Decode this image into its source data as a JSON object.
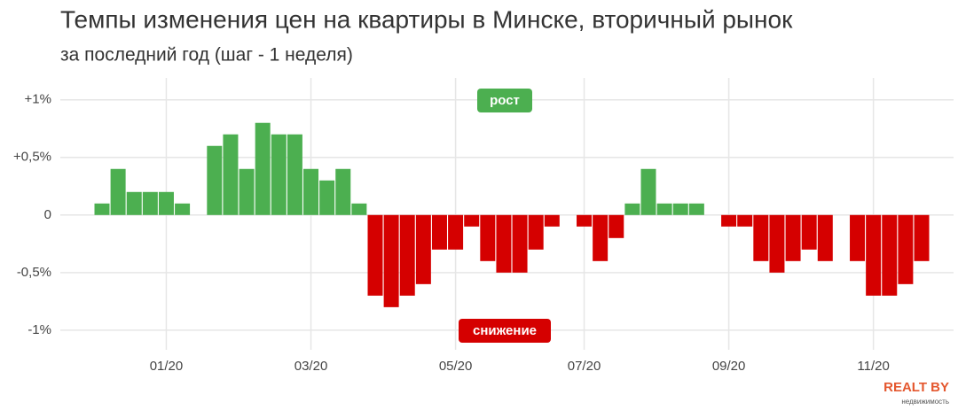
{
  "chart_data": {
    "type": "bar",
    "title": "Темпы изменения цен на квартиры в Минске, вторичный рынок",
    "subtitle": "за последний год (шаг - 1 неделя)",
    "categories": [
      null,
      null,
      null,
      null,
      "01/20",
      null,
      null,
      null,
      null,
      null,
      null,
      null,
      null,
      "03/20",
      null,
      null,
      null,
      null,
      null,
      null,
      null,
      null,
      "05/20",
      null,
      null,
      null,
      null,
      null,
      null,
      null,
      "07/20",
      null,
      null,
      null,
      null,
      null,
      null,
      null,
      null,
      "09/20",
      null,
      null,
      null,
      null,
      null,
      null,
      null,
      null,
      "11/20",
      null,
      null,
      null
    ],
    "values": [
      0.1,
      0.4,
      0.2,
      0.2,
      0.2,
      0.1,
      0,
      0.6,
      0.7,
      0.4,
      0.8,
      0.7,
      0.7,
      0.4,
      0.3,
      0.4,
      0.1,
      -0.7,
      -0.8,
      -0.7,
      -0.6,
      -0.3,
      -0.3,
      -0.1,
      -0.4,
      -0.5,
      -0.5,
      -0.3,
      -0.1,
      0,
      -0.1,
      -0.4,
      -0.2,
      0.1,
      0.4,
      0.1,
      0.1,
      0.1,
      0,
      -0.1,
      -0.1,
      -0.4,
      -0.5,
      -0.4,
      -0.3,
      -0.4,
      0,
      -0.4,
      -0.7,
      -0.7,
      -0.6,
      -0.4
    ],
    "positive_color": "#4caf50",
    "negative_color": "#d50000",
    "ylim": [
      -1.17,
      1.19
    ],
    "yticks": [
      {
        "value": 1,
        "label": "+1%"
      },
      {
        "value": 0.5,
        "label": "+0,5%"
      },
      0,
      {
        "value": -0.5,
        "label": "-0,5%"
      },
      {
        "value": -1,
        "label": "-1%"
      }
    ],
    "annotations": [
      "рост",
      "снижение"
    ],
    "grid": true
  },
  "logo": {
    "name": "REALT BY",
    "tagline": "недвижимость"
  }
}
